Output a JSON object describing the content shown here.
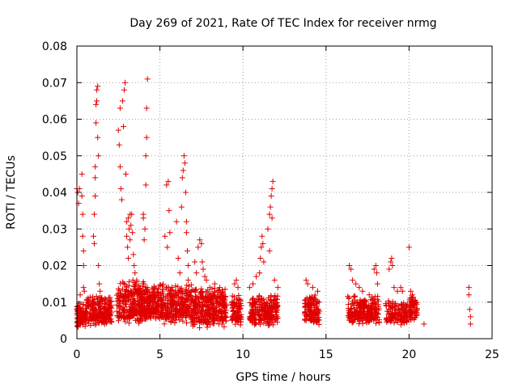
{
  "chart_data": {
    "type": "scatter",
    "title": "Day 269 of 2021, Rate Of TEC Index for receiver nrmg",
    "xlabel": "GPS time / hours",
    "ylabel": "ROTI / TECUs",
    "xlim": [
      0,
      25
    ],
    "ylim": [
      0,
      0.08
    ],
    "xticks": [
      0,
      5,
      10,
      15,
      20,
      25
    ],
    "xtick_labels": [
      "0",
      "5",
      "10",
      "15",
      "20",
      "25"
    ],
    "yticks": [
      0,
      0.01,
      0.02,
      0.03,
      0.04,
      0.05,
      0.06,
      0.07,
      0.08
    ],
    "ytick_labels": [
      "0",
      "0.01",
      "0.02",
      "0.03",
      "0.04",
      "0.05",
      "0.06",
      "0.07",
      "0.08"
    ],
    "grid": true,
    "marker": "+",
    "colors": {
      "series": "#e00000",
      "grid": "#a0a0a0",
      "axis": "#000000"
    },
    "series": [
      {
        "name": "ROTI",
        "points": [
          [
            0.0,
            0.041
          ],
          [
            0.05,
            0.04
          ],
          [
            0.1,
            0.037
          ],
          [
            0.15,
            0.041
          ],
          [
            0.2,
            0.012
          ],
          [
            0.3,
            0.045
          ],
          [
            0.3,
            0.039
          ],
          [
            0.35,
            0.034
          ],
          [
            0.35,
            0.028
          ],
          [
            0.4,
            0.024
          ],
          [
            0.4,
            0.02
          ],
          [
            0.4,
            0.014
          ],
          [
            0.45,
            0.013
          ],
          [
            1.0,
            0.028
          ],
          [
            1.05,
            0.026
          ],
          [
            1.05,
            0.034
          ],
          [
            1.1,
            0.039
          ],
          [
            1.1,
            0.044
          ],
          [
            1.1,
            0.047
          ],
          [
            1.15,
            0.059
          ],
          [
            1.15,
            0.064
          ],
          [
            1.2,
            0.065
          ],
          [
            1.2,
            0.068
          ],
          [
            1.25,
            0.069
          ],
          [
            1.25,
            0.055
          ],
          [
            1.3,
            0.05
          ],
          [
            1.3,
            0.02
          ],
          [
            1.35,
            0.015
          ],
          [
            1.4,
            0.013
          ],
          [
            2.5,
            0.057
          ],
          [
            2.55,
            0.053
          ],
          [
            2.6,
            0.063
          ],
          [
            2.6,
            0.047
          ],
          [
            2.65,
            0.041
          ],
          [
            2.7,
            0.038
          ],
          [
            2.75,
            0.065
          ],
          [
            2.8,
            0.058
          ],
          [
            2.85,
            0.068
          ],
          [
            2.9,
            0.07
          ],
          [
            2.95,
            0.045
          ],
          [
            3.0,
            0.032
          ],
          [
            3.0,
            0.028
          ],
          [
            3.05,
            0.025
          ],
          [
            3.1,
            0.022
          ],
          [
            3.1,
            0.033
          ],
          [
            3.15,
            0.03
          ],
          [
            3.2,
            0.027
          ],
          [
            3.2,
            0.034
          ],
          [
            3.25,
            0.031
          ],
          [
            3.3,
            0.034
          ],
          [
            3.35,
            0.029
          ],
          [
            3.4,
            0.023
          ],
          [
            3.45,
            0.02
          ],
          [
            3.5,
            0.018
          ],
          [
            3.6,
            0.016
          ],
          [
            3.7,
            0.013
          ],
          [
            3.8,
            0.012
          ],
          [
            4.0,
            0.034
          ],
          [
            4.0,
            0.033
          ],
          [
            4.05,
            0.027
          ],
          [
            4.1,
            0.03
          ],
          [
            4.15,
            0.042
          ],
          [
            4.15,
            0.05
          ],
          [
            4.2,
            0.055
          ],
          [
            4.2,
            0.063
          ],
          [
            4.25,
            0.071
          ],
          [
            5.3,
            0.028
          ],
          [
            5.4,
            0.042
          ],
          [
            5.45,
            0.025
          ],
          [
            5.5,
            0.043
          ],
          [
            5.55,
            0.035
          ],
          [
            5.6,
            0.029
          ],
          [
            5.7,
            0.012
          ],
          [
            6.0,
            0.032
          ],
          [
            6.1,
            0.022
          ],
          [
            6.2,
            0.018
          ],
          [
            6.3,
            0.036
          ],
          [
            6.35,
            0.044
          ],
          [
            6.4,
            0.046
          ],
          [
            6.45,
            0.05
          ],
          [
            6.5,
            0.048
          ],
          [
            6.55,
            0.04
          ],
          [
            6.6,
            0.032
          ],
          [
            6.6,
            0.029
          ],
          [
            6.65,
            0.024
          ],
          [
            6.7,
            0.02
          ],
          [
            6.7,
            0.016
          ],
          [
            7.1,
            0.021
          ],
          [
            7.2,
            0.018
          ],
          [
            7.3,
            0.025
          ],
          [
            7.4,
            0.027
          ],
          [
            7.5,
            0.026
          ],
          [
            7.55,
            0.021
          ],
          [
            7.6,
            0.019
          ],
          [
            7.7,
            0.017
          ],
          [
            7.8,
            0.016
          ],
          [
            8.0,
            0.014
          ],
          [
            8.3,
            0.015
          ],
          [
            8.6,
            0.014
          ],
          [
            8.8,
            0.012
          ],
          [
            9.5,
            0.015
          ],
          [
            9.6,
            0.016
          ],
          [
            9.7,
            0.014
          ],
          [
            10.4,
            0.014
          ],
          [
            10.6,
            0.015
          ],
          [
            10.8,
            0.017
          ],
          [
            11.0,
            0.018
          ],
          [
            11.05,
            0.022
          ],
          [
            11.1,
            0.025
          ],
          [
            11.15,
            0.028
          ],
          [
            11.2,
            0.026
          ],
          [
            11.25,
            0.021
          ],
          [
            11.5,
            0.03
          ],
          [
            11.6,
            0.034
          ],
          [
            11.65,
            0.036
          ],
          [
            11.7,
            0.039
          ],
          [
            11.75,
            0.041
          ],
          [
            11.8,
            0.043
          ],
          [
            11.75,
            0.033
          ],
          [
            11.6,
            0.024
          ],
          [
            11.9,
            0.016
          ],
          [
            12.1,
            0.014
          ],
          [
            13.8,
            0.016
          ],
          [
            13.9,
            0.015
          ],
          [
            14.2,
            0.014
          ],
          [
            14.5,
            0.013
          ],
          [
            16.4,
            0.02
          ],
          [
            16.5,
            0.019
          ],
          [
            16.6,
            0.016
          ],
          [
            16.8,
            0.015
          ],
          [
            17.0,
            0.014
          ],
          [
            17.2,
            0.013
          ],
          [
            17.6,
            0.012
          ],
          [
            17.9,
            0.019
          ],
          [
            18.0,
            0.02
          ],
          [
            18.05,
            0.018
          ],
          [
            18.1,
            0.015
          ],
          [
            18.8,
            0.019
          ],
          [
            18.9,
            0.021
          ],
          [
            18.95,
            0.022
          ],
          [
            19.0,
            0.02
          ],
          [
            19.1,
            0.014
          ],
          [
            19.3,
            0.013
          ],
          [
            19.5,
            0.014
          ],
          [
            19.6,
            0.013
          ],
          [
            20.0,
            0.025
          ],
          [
            20.1,
            0.013
          ],
          [
            20.2,
            0.012
          ],
          [
            20.4,
            0.01
          ],
          [
            20.9,
            0.004
          ],
          [
            23.6,
            0.014
          ],
          [
            23.6,
            0.012
          ],
          [
            23.65,
            0.008
          ],
          [
            23.7,
            0.006
          ],
          [
            23.7,
            0.004
          ]
        ],
        "bands": [
          {
            "x": [
              0.0,
              0.5
            ],
            "y": [
              0.002,
              0.01
            ],
            "n": 90
          },
          {
            "x": [
              0.5,
              1.6
            ],
            "y": [
              0.002,
              0.012
            ],
            "n": 150
          },
          {
            "x": [
              1.6,
              2.1
            ],
            "y": [
              0.002,
              0.012
            ],
            "n": 70
          },
          {
            "x": [
              2.4,
              4.3
            ],
            "y": [
              0.002,
              0.016
            ],
            "n": 320
          },
          {
            "x": [
              4.3,
              6.9
            ],
            "y": [
              0.002,
              0.015
            ],
            "n": 380
          },
          {
            "x": [
              6.9,
              9.0
            ],
            "y": [
              0.001,
              0.014
            ],
            "n": 330
          },
          {
            "x": [
              9.3,
              9.9
            ],
            "y": [
              0.002,
              0.012
            ],
            "n": 90
          },
          {
            "x": [
              10.4,
              12.1
            ],
            "y": [
              0.002,
              0.012
            ],
            "n": 230
          },
          {
            "x": [
              13.7,
              14.6
            ],
            "y": [
              0.002,
              0.012
            ],
            "n": 130
          },
          {
            "x": [
              16.3,
              18.2
            ],
            "y": [
              0.002,
              0.012
            ],
            "n": 230
          },
          {
            "x": [
              18.6,
              19.9
            ],
            "y": [
              0.002,
              0.011
            ],
            "n": 130
          },
          {
            "x": [
              20.0,
              20.5
            ],
            "y": [
              0.003,
              0.012
            ],
            "n": 60
          }
        ]
      }
    ]
  }
}
